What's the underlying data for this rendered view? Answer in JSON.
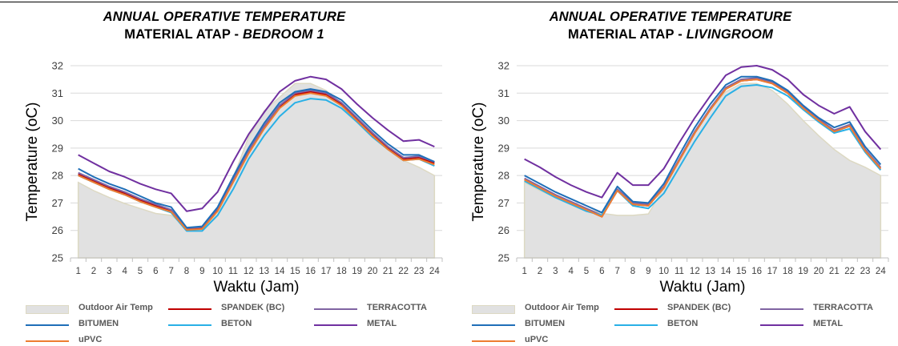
{
  "chart_data": [
    {
      "type": "line",
      "title_line1": "ANNUAL OPERATIVE TEMPERATURE",
      "title_line2_prefix": "MATERIAL ATAP - ",
      "title_line2_italic": "BEDROOM 1",
      "xlabel": "Waktu (Jam)",
      "ylabel": "Temperature (oC)",
      "ylim": [
        25,
        32
      ],
      "yticks": [
        "25",
        "26",
        "27",
        "28",
        "29",
        "30",
        "31",
        "32"
      ],
      "categories": [
        "1",
        "2",
        "3",
        "4",
        "5",
        "6",
        "7",
        "8",
        "9",
        "10",
        "11",
        "12",
        "13",
        "14",
        "15",
        "16",
        "17",
        "18",
        "19",
        "20",
        "21",
        "22",
        "23",
        "24"
      ],
      "legend_position": "bottom",
      "series": [
        {
          "name": "Outdoor Air Temp",
          "kind": "area",
          "color": "#ddd9c3",
          "fill": "#e1e1e1",
          "values": [
            27.75,
            27.45,
            27.2,
            26.98,
            26.8,
            26.62,
            26.55,
            26.1,
            26.05,
            26.6,
            27.9,
            29.4,
            30.35,
            30.85,
            31.35,
            31.35,
            31.1,
            30.6,
            30.0,
            29.45,
            28.95,
            28.55,
            28.3,
            28.0
          ]
        },
        {
          "name": "SPANDEK (BC)",
          "kind": "line",
          "color": "#c00000",
          "values": [
            28.05,
            27.8,
            27.55,
            27.35,
            27.1,
            26.9,
            26.7,
            26.05,
            26.1,
            26.75,
            27.8,
            28.85,
            29.75,
            30.5,
            30.95,
            31.05,
            30.95,
            30.6,
            30.05,
            29.5,
            29.0,
            28.6,
            28.65,
            28.45
          ]
        },
        {
          "name": "TERRACOTTA",
          "kind": "line",
          "color": "#8064a2",
          "values": [
            28.1,
            27.85,
            27.6,
            27.4,
            27.15,
            26.95,
            26.75,
            26.08,
            26.12,
            26.8,
            27.85,
            28.9,
            29.8,
            30.55,
            31.0,
            31.1,
            31.0,
            30.65,
            30.1,
            29.55,
            29.05,
            28.65,
            28.7,
            28.5
          ]
        },
        {
          "name": "BITUMEN",
          "kind": "line",
          "color": "#1f6fb8",
          "values": [
            28.25,
            27.95,
            27.7,
            27.5,
            27.25,
            27.0,
            26.85,
            26.1,
            26.15,
            26.85,
            27.95,
            29.0,
            29.9,
            30.65,
            31.05,
            31.15,
            31.05,
            30.75,
            30.2,
            29.65,
            29.15,
            28.75,
            28.75,
            28.5
          ]
        },
        {
          "name": "BETON",
          "kind": "line",
          "color": "#29b0e6",
          "values": [
            28.0,
            27.75,
            27.5,
            27.3,
            27.05,
            26.85,
            26.65,
            25.98,
            25.98,
            26.55,
            27.5,
            28.6,
            29.45,
            30.15,
            30.65,
            30.8,
            30.75,
            30.45,
            29.95,
            29.4,
            28.95,
            28.55,
            28.6,
            28.35
          ]
        },
        {
          "name": "METAL",
          "kind": "line",
          "color": "#7030a0",
          "values": [
            28.75,
            28.45,
            28.15,
            27.95,
            27.7,
            27.5,
            27.35,
            26.7,
            26.8,
            27.4,
            28.5,
            29.5,
            30.3,
            31.05,
            31.45,
            31.6,
            31.5,
            31.15,
            30.6,
            30.1,
            29.65,
            29.25,
            29.3,
            29.05
          ]
        },
        {
          "name": "uPVC",
          "kind": "line",
          "color": "#ed7d31",
          "values": [
            28.0,
            27.75,
            27.5,
            27.3,
            27.05,
            26.85,
            26.68,
            26.02,
            26.05,
            26.7,
            27.75,
            28.8,
            29.7,
            30.45,
            30.9,
            31.0,
            30.9,
            30.55,
            30.0,
            29.45,
            28.95,
            28.55,
            28.6,
            28.4
          ]
        }
      ],
      "legend_entries": [
        "Outdoor Air Temp",
        "SPANDEK (BC)",
        "TERRACOTTA",
        "BITUMEN",
        "BETON",
        "METAL",
        "uPVC"
      ]
    },
    {
      "type": "line",
      "title_line1": "ANNUAL OPERATIVE TEMPERATURE",
      "title_line2_prefix": "MATERIAL ATAP - ",
      "title_line2_italic": "LIVINGROOM",
      "xlabel": "Waktu (Jam)",
      "ylabel": "Temperature (oC)",
      "ylim": [
        25,
        32
      ],
      "yticks": [
        "25",
        "26",
        "27",
        "28",
        "29",
        "30",
        "31",
        "32"
      ],
      "categories": [
        "1",
        "2",
        "3",
        "4",
        "5",
        "6",
        "7",
        "8",
        "9",
        "10",
        "11",
        "12",
        "13",
        "14",
        "15",
        "16",
        "17",
        "18",
        "19",
        "20",
        "21",
        "22",
        "23",
        "24"
      ],
      "legend_position": "bottom",
      "series": [
        {
          "name": "Outdoor Air Temp",
          "kind": "area",
          "color": "#ddd9c3",
          "fill": "#e1e1e1",
          "values": [
            27.75,
            27.45,
            27.2,
            26.98,
            26.8,
            26.62,
            26.55,
            26.55,
            26.6,
            27.55,
            28.6,
            29.6,
            30.4,
            31.05,
            31.35,
            31.35,
            31.1,
            30.6,
            30.0,
            29.45,
            28.95,
            28.55,
            28.3,
            28.0
          ]
        },
        {
          "name": "SPANDEK (BC)",
          "kind": "line",
          "color": "#c00000",
          "values": [
            27.85,
            27.55,
            27.25,
            27.0,
            26.75,
            26.5,
            27.45,
            26.95,
            26.9,
            27.55,
            28.55,
            29.55,
            30.4,
            31.15,
            31.45,
            31.5,
            31.35,
            31.0,
            30.45,
            30.0,
            29.6,
            29.8,
            28.9,
            28.25
          ]
        },
        {
          "name": "TERRACOTTA",
          "kind": "line",
          "color": "#8064a2",
          "values": [
            27.9,
            27.6,
            27.3,
            27.05,
            26.8,
            26.55,
            27.5,
            27.0,
            26.95,
            27.6,
            28.6,
            29.6,
            30.45,
            31.2,
            31.5,
            31.55,
            31.4,
            31.05,
            30.5,
            30.05,
            29.65,
            29.85,
            28.95,
            28.3
          ]
        },
        {
          "name": "BITUMEN",
          "kind": "line",
          "color": "#1f6fb8",
          "values": [
            28.0,
            27.7,
            27.4,
            27.15,
            26.9,
            26.65,
            27.6,
            27.05,
            27.0,
            27.7,
            28.75,
            29.75,
            30.6,
            31.3,
            31.6,
            31.6,
            31.45,
            31.1,
            30.55,
            30.1,
            29.75,
            29.95,
            29.05,
            28.4
          ]
        },
        {
          "name": "BETON",
          "kind": "line",
          "color": "#29b0e6",
          "values": [
            27.8,
            27.5,
            27.2,
            26.95,
            26.7,
            26.55,
            27.45,
            26.9,
            26.8,
            27.35,
            28.3,
            29.25,
            30.1,
            30.9,
            31.25,
            31.3,
            31.2,
            30.9,
            30.4,
            29.95,
            29.55,
            29.7,
            28.85,
            28.2
          ]
        },
        {
          "name": "METAL",
          "kind": "line",
          "color": "#7030a0",
          "values": [
            28.6,
            28.3,
            27.95,
            27.65,
            27.4,
            27.2,
            28.1,
            27.65,
            27.65,
            28.25,
            29.2,
            30.1,
            30.9,
            31.65,
            31.95,
            32.0,
            31.85,
            31.5,
            30.95,
            30.55,
            30.25,
            30.5,
            29.6,
            28.95
          ]
        },
        {
          "name": "uPVC",
          "kind": "line",
          "color": "#ed7d31",
          "values": [
            27.85,
            27.55,
            27.25,
            27.0,
            26.75,
            26.5,
            27.45,
            26.95,
            26.9,
            27.55,
            28.55,
            29.55,
            30.4,
            31.15,
            31.45,
            31.5,
            31.35,
            31.0,
            30.45,
            30.0,
            29.6,
            29.8,
            28.9,
            28.25
          ]
        }
      ],
      "legend_entries": [
        "Outdoor Air Temp",
        "SPANDEK (BC)",
        "TERRACOTTA",
        "BITUMEN",
        "BETON",
        "METAL",
        "uPVC"
      ]
    }
  ]
}
